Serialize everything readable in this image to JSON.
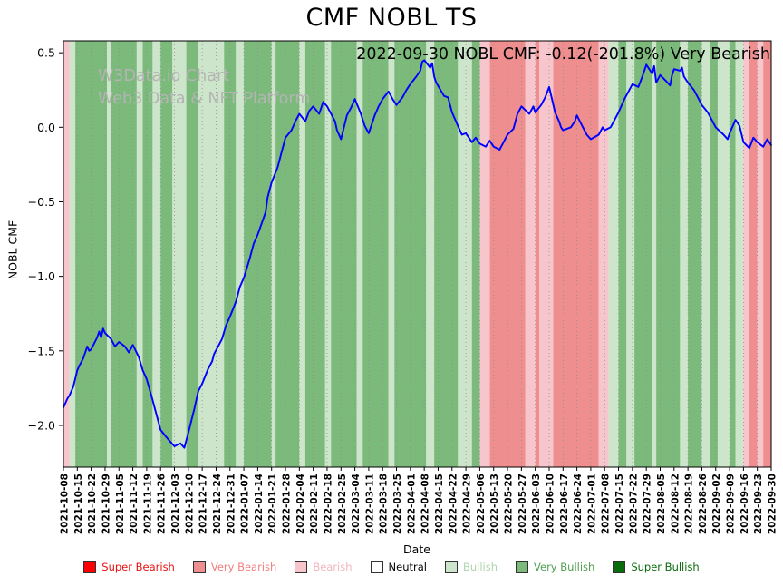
{
  "chart_data": {
    "type": "line",
    "title": "CMF NOBL TS",
    "annotation": "2022-09-30 NOBL CMF: -0.12(-201.8%) Very Bearish",
    "watermark": {
      "line1": "W3Data.io Chart",
      "line2": "Web3 Data & NFT Platform"
    },
    "xlabel": "Date",
    "ylabel": "NOBL CMF",
    "ylim": [
      -2.28,
      0.58
    ],
    "x_total_days": 357,
    "x_tick_interval_days": 7,
    "grid": true,
    "legend_position": "bottom",
    "line_color": "#0000ff",
    "yticks": [
      {
        "label": "0.5",
        "value": 0.5
      },
      {
        "label": "0.0",
        "value": 0.0
      },
      {
        "label": "−0.5",
        "value": -0.5
      },
      {
        "label": "−1.0",
        "value": -1.0
      },
      {
        "label": "−1.5",
        "value": -1.5
      },
      {
        "label": "−2.0",
        "value": -2.0
      }
    ],
    "x_tick_labels": [
      "2021-10-08",
      "2021-10-15",
      "2021-10-22",
      "2021-10-29",
      "2021-11-05",
      "2021-11-12",
      "2021-11-19",
      "2021-11-26",
      "2021-12-03",
      "2021-12-10",
      "2021-12-17",
      "2021-12-24",
      "2021-12-31",
      "2022-01-07",
      "2022-01-14",
      "2022-01-21",
      "2022-01-28",
      "2022-02-04",
      "2022-02-11",
      "2022-02-18",
      "2022-02-25",
      "2022-03-04",
      "2022-03-11",
      "2022-03-18",
      "2022-03-25",
      "2022-04-01",
      "2022-04-08",
      "2022-04-15",
      "2022-04-22",
      "2022-04-29",
      "2022-05-06",
      "2022-05-13",
      "2022-05-20",
      "2022-05-27",
      "2022-06-03",
      "2022-06-10",
      "2022-06-17",
      "2022-06-24",
      "2022-07-01",
      "2022-07-08",
      "2022-07-15",
      "2022-07-22",
      "2022-07-29",
      "2022-08-05",
      "2022-08-12",
      "2022-08-19",
      "2022-08-26",
      "2022-09-02",
      "2022-09-09",
      "2022-09-16",
      "2022-09-23",
      "2022-09-30"
    ],
    "band_colors": {
      "super_bearish": "#ff0000",
      "very_bearish": "#ee8e8e",
      "bearish": "#f7c6cc",
      "neutral": "#ffffff",
      "bullish": "#cde5cb",
      "very_bullish": "#7cba7c",
      "super_bullish": "#0a6b0a"
    },
    "bands": [
      [
        0,
        3,
        "bearish"
      ],
      [
        3,
        6,
        "bullish"
      ],
      [
        6,
        22,
        "very_bullish"
      ],
      [
        22,
        24,
        "bullish"
      ],
      [
        24,
        37,
        "very_bullish"
      ],
      [
        37,
        40,
        "bullish"
      ],
      [
        40,
        45,
        "very_bullish"
      ],
      [
        45,
        49,
        "bullish"
      ],
      [
        49,
        55,
        "very_bullish"
      ],
      [
        55,
        62,
        "bullish"
      ],
      [
        62,
        68,
        "very_bullish"
      ],
      [
        68,
        81,
        "bullish"
      ],
      [
        81,
        87,
        "very_bullish"
      ],
      [
        87,
        91,
        "bullish"
      ],
      [
        91,
        105,
        "very_bullish"
      ],
      [
        105,
        107,
        "bullish"
      ],
      [
        107,
        119,
        "very_bullish"
      ],
      [
        119,
        122,
        "bullish"
      ],
      [
        122,
        132,
        "very_bullish"
      ],
      [
        132,
        135,
        "bullish"
      ],
      [
        135,
        148,
        "very_bullish"
      ],
      [
        148,
        151,
        "bullish"
      ],
      [
        151,
        164,
        "very_bullish"
      ],
      [
        164,
        167,
        "bullish"
      ],
      [
        167,
        183,
        "very_bullish"
      ],
      [
        183,
        187,
        "bullish"
      ],
      [
        187,
        199,
        "very_bullish"
      ],
      [
        199,
        206,
        "bullish"
      ],
      [
        206,
        210,
        "very_bullish"
      ],
      [
        210,
        215,
        "bearish"
      ],
      [
        215,
        233,
        "very_bearish"
      ],
      [
        233,
        238,
        "bearish"
      ],
      [
        238,
        240,
        "very_bearish"
      ],
      [
        240,
        247,
        "bearish"
      ],
      [
        247,
        270,
        "very_bearish"
      ],
      [
        270,
        275,
        "bearish"
      ],
      [
        275,
        280,
        "bullish"
      ],
      [
        280,
        284,
        "very_bullish"
      ],
      [
        284,
        288,
        "bullish"
      ],
      [
        288,
        297,
        "very_bullish"
      ],
      [
        297,
        299,
        "bullish"
      ],
      [
        299,
        311,
        "very_bullish"
      ],
      [
        311,
        315,
        "bullish"
      ],
      [
        315,
        322,
        "very_bullish"
      ],
      [
        322,
        326,
        "bullish"
      ],
      [
        326,
        330,
        "very_bullish"
      ],
      [
        330,
        336,
        "bullish"
      ],
      [
        336,
        339,
        "very_bullish"
      ],
      [
        339,
        343,
        "bullish"
      ],
      [
        343,
        346,
        "bearish"
      ],
      [
        346,
        350,
        "very_bearish"
      ],
      [
        350,
        353,
        "bearish"
      ],
      [
        353,
        357,
        "very_bearish"
      ]
    ],
    "series": [
      {
        "name": "NOBL CMF",
        "points": [
          [
            0,
            -1.88
          ],
          [
            2,
            -1.82
          ],
          [
            3,
            -1.8
          ],
          [
            5,
            -1.74
          ],
          [
            7,
            -1.63
          ],
          [
            8,
            -1.6
          ],
          [
            10,
            -1.55
          ],
          [
            12,
            -1.47
          ],
          [
            13,
            -1.5
          ],
          [
            14,
            -1.49
          ],
          [
            17,
            -1.41
          ],
          [
            18,
            -1.37
          ],
          [
            19,
            -1.41
          ],
          [
            20,
            -1.35
          ],
          [
            21,
            -1.38
          ],
          [
            24,
            -1.42
          ],
          [
            26,
            -1.47
          ],
          [
            28,
            -1.44
          ],
          [
            31,
            -1.47
          ],
          [
            33,
            -1.51
          ],
          [
            35,
            -1.46
          ],
          [
            38,
            -1.54
          ],
          [
            40,
            -1.63
          ],
          [
            42,
            -1.69
          ],
          [
            45,
            -1.83
          ],
          [
            47,
            -1.93
          ],
          [
            49,
            -2.03
          ],
          [
            52,
            -2.08
          ],
          [
            54,
            -2.11
          ],
          [
            56,
            -2.14
          ],
          [
            59,
            -2.12
          ],
          [
            61,
            -2.15
          ],
          [
            63,
            -2.05
          ],
          [
            66,
            -1.89
          ],
          [
            68,
            -1.77
          ],
          [
            70,
            -1.72
          ],
          [
            73,
            -1.62
          ],
          [
            75,
            -1.57
          ],
          [
            76,
            -1.52
          ],
          [
            80,
            -1.42
          ],
          [
            82,
            -1.33
          ],
          [
            84,
            -1.27
          ],
          [
            87,
            -1.17
          ],
          [
            89,
            -1.07
          ],
          [
            91,
            -1.01
          ],
          [
            94,
            -0.88
          ],
          [
            96,
            -0.78
          ],
          [
            98,
            -0.72
          ],
          [
            102,
            -0.57
          ],
          [
            103,
            -0.47
          ],
          [
            105,
            -0.37
          ],
          [
            108,
            -0.27
          ],
          [
            110,
            -0.17
          ],
          [
            112,
            -0.07
          ],
          [
            115,
            -0.02
          ],
          [
            117,
            0.04
          ],
          [
            119,
            0.09
          ],
          [
            122,
            0.04
          ],
          [
            124,
            0.11
          ],
          [
            126,
            0.14
          ],
          [
            129,
            0.09
          ],
          [
            131,
            0.17
          ],
          [
            133,
            0.14
          ],
          [
            137,
            0.04
          ],
          [
            138,
            -0.02
          ],
          [
            140,
            -0.08
          ],
          [
            143,
            0.08
          ],
          [
            145,
            0.13
          ],
          [
            147,
            0.19
          ],
          [
            150,
            0.09
          ],
          [
            152,
            0.01
          ],
          [
            154,
            -0.04
          ],
          [
            157,
            0.08
          ],
          [
            159,
            0.14
          ],
          [
            161,
            0.19
          ],
          [
            164,
            0.24
          ],
          [
            166,
            0.19
          ],
          [
            168,
            0.15
          ],
          [
            171,
            0.2
          ],
          [
            173,
            0.25
          ],
          [
            175,
            0.29
          ],
          [
            178,
            0.34
          ],
          [
            180,
            0.38
          ],
          [
            181,
            0.44
          ],
          [
            182,
            0.45
          ],
          [
            185,
            0.4
          ],
          [
            186,
            0.43
          ],
          [
            187,
            0.34
          ],
          [
            188,
            0.3
          ],
          [
            192,
            0.21
          ],
          [
            194,
            0.2
          ],
          [
            196,
            0.1
          ],
          [
            199,
            0.01
          ],
          [
            201,
            -0.05
          ],
          [
            203,
            -0.04
          ],
          [
            206,
            -0.1
          ],
          [
            208,
            -0.07
          ],
          [
            210,
            -0.11
          ],
          [
            213,
            -0.13
          ],
          [
            215,
            -0.09
          ],
          [
            217,
            -0.13
          ],
          [
            220,
            -0.15
          ],
          [
            222,
            -0.1
          ],
          [
            224,
            -0.05
          ],
          [
            227,
            -0.01
          ],
          [
            229,
            0.09
          ],
          [
            231,
            0.14
          ],
          [
            235,
            0.09
          ],
          [
            237,
            0.14
          ],
          [
            238,
            0.1
          ],
          [
            241,
            0.15
          ],
          [
            243,
            0.2
          ],
          [
            245,
            0.27
          ],
          [
            248,
            0.1
          ],
          [
            250,
            0.04
          ],
          [
            251,
            0.0
          ],
          [
            252,
            -0.02
          ],
          [
            256,
            0.0
          ],
          [
            258,
            0.04
          ],
          [
            259,
            0.08
          ],
          [
            262,
            0.0
          ],
          [
            264,
            -0.05
          ],
          [
            266,
            -0.08
          ],
          [
            270,
            -0.05
          ],
          [
            272,
            0.0
          ],
          [
            273,
            -0.02
          ],
          [
            276,
            0.0
          ],
          [
            278,
            0.05
          ],
          [
            280,
            0.1
          ],
          [
            283,
            0.19
          ],
          [
            285,
            0.24
          ],
          [
            287,
            0.29
          ],
          [
            290,
            0.27
          ],
          [
            292,
            0.34
          ],
          [
            294,
            0.42
          ],
          [
            297,
            0.36
          ],
          [
            298,
            0.41
          ],
          [
            299,
            0.3
          ],
          [
            301,
            0.35
          ],
          [
            304,
            0.31
          ],
          [
            306,
            0.28
          ],
          [
            307,
            0.35
          ],
          [
            308,
            0.39
          ],
          [
            311,
            0.38
          ],
          [
            312,
            0.4
          ],
          [
            313,
            0.34
          ],
          [
            315,
            0.3
          ],
          [
            318,
            0.25
          ],
          [
            320,
            0.2
          ],
          [
            322,
            0.15
          ],
          [
            325,
            0.1
          ],
          [
            327,
            0.05
          ],
          [
            329,
            0.0
          ],
          [
            333,
            -0.05
          ],
          [
            335,
            -0.08
          ],
          [
            336,
            -0.04
          ],
          [
            339,
            0.05
          ],
          [
            341,
            0.01
          ],
          [
            343,
            -0.1
          ],
          [
            346,
            -0.14
          ],
          [
            348,
            -0.07
          ],
          [
            350,
            -0.1
          ],
          [
            353,
            -0.13
          ],
          [
            355,
            -0.08
          ],
          [
            357,
            -0.12
          ]
        ]
      }
    ],
    "legend": [
      {
        "label": "Super Bearish",
        "color": "#e81010",
        "swatch": "#ff0000"
      },
      {
        "label": "Very Bearish",
        "color": "#f08080",
        "swatch": "#ee8e8e"
      },
      {
        "label": "Bearish",
        "color": "#f0b6bd",
        "swatch": "#f7c6cc"
      },
      {
        "label": "Neutral",
        "color": "#000000",
        "swatch": "#ffffff"
      },
      {
        "label": "Bullish",
        "color": "#aed4ac",
        "swatch": "#cde5cb"
      },
      {
        "label": "Very Bullish",
        "color": "#4e9e4e",
        "swatch": "#7cba7c"
      },
      {
        "label": "Super Bullish",
        "color": "#0a6b0a",
        "swatch": "#0a6b0a"
      }
    ]
  }
}
